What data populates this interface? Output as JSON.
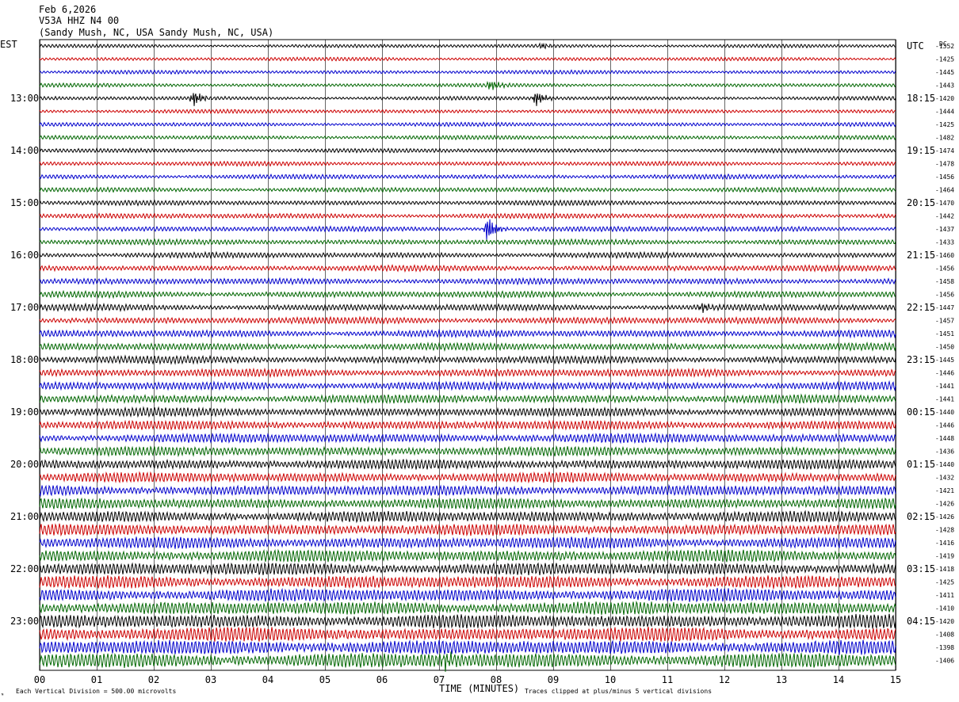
{
  "header": {
    "date": "Feb 6,2026",
    "station": "V53A HHZ N4 00",
    "location": "(Sandy Mush, NC, USA Sandy Mush, NC, USA)"
  },
  "labels": {
    "left_timezone": "EST",
    "right_timezone": "UTC",
    "dc_header": "DC",
    "xlabel": "TIME (MINUTES)",
    "scale_note": "Each Vertical Division =  500.00 microvolts",
    "clip_note": "Traces clipped at plus/minus 5 vertical divisions",
    "corner_mark": "ᴺ"
  },
  "colors": {
    "trace_cycle": [
      "#000000",
      "#cc0000",
      "#0000cc",
      "#006600"
    ],
    "grid": "#000000",
    "background": "#ffffff"
  },
  "chart_data": {
    "type": "line",
    "chart_kind": "helicorder",
    "xlabel": "TIME (MINUTES)",
    "xlim": [
      0,
      15
    ],
    "x_ticks": [
      "00",
      "01",
      "02",
      "03",
      "04",
      "05",
      "06",
      "07",
      "08",
      "09",
      "10",
      "11",
      "12",
      "13",
      "14",
      "15"
    ],
    "minutes_per_line": 15,
    "line_count": 48,
    "left_hour_labels": [
      {
        "line": 4,
        "label": "13:00"
      },
      {
        "line": 8,
        "label": "14:00"
      },
      {
        "line": 12,
        "label": "15:00"
      },
      {
        "line": 16,
        "label": "16:00"
      },
      {
        "line": 20,
        "label": "17:00"
      },
      {
        "line": 24,
        "label": "18:00"
      },
      {
        "line": 28,
        "label": "19:00"
      },
      {
        "line": 32,
        "label": "20:00"
      },
      {
        "line": 36,
        "label": "21:00"
      },
      {
        "line": 40,
        "label": "22:00"
      },
      {
        "line": 44,
        "label": "23:00"
      }
    ],
    "right_hour_labels": [
      {
        "line": 0,
        "label": "UTC"
      },
      {
        "line": 4,
        "label": "18:15"
      },
      {
        "line": 8,
        "label": "19:15"
      },
      {
        "line": 12,
        "label": "20:15"
      },
      {
        "line": 16,
        "label": "21:15"
      },
      {
        "line": 20,
        "label": "22:15"
      },
      {
        "line": 24,
        "label": "23:15"
      },
      {
        "line": 28,
        "label": "00:15"
      },
      {
        "line": 32,
        "label": "01:15"
      },
      {
        "line": 36,
        "label": "02:15"
      },
      {
        "line": 40,
        "label": "03:15"
      },
      {
        "line": 44,
        "label": "04:15"
      }
    ],
    "dc_offsets": [
      "-1352",
      "-1425",
      "-1445",
      "-1443",
      "-1420",
      "-1444",
      "-1425",
      "-1482",
      "-1474",
      "-1478",
      "-1456",
      "-1464",
      "-1470",
      "-1442",
      "-1437",
      "-1433",
      "-1460",
      "-1456",
      "-1458",
      "-1456",
      "-1447",
      "-1457",
      "-1451",
      "-1450",
      "-1445",
      "-1446",
      "-1441",
      "-1441",
      "-1440",
      "-1446",
      "-1448",
      "-1436",
      "-1440",
      "-1432",
      "-1421",
      "-1426",
      "-1426",
      "-1428",
      "-1416",
      "-1419",
      "-1418",
      "-1425",
      "-1411",
      "-1410",
      "-1420",
      "-1408",
      "-1398",
      "-1406"
    ],
    "events": [
      {
        "line": 0,
        "minute": 8.8,
        "amplitude": 0.4
      },
      {
        "line": 3,
        "minute": 7.9,
        "amplitude": 0.8
      },
      {
        "line": 4,
        "minute": 2.7,
        "amplitude": 1.2
      },
      {
        "line": 4,
        "minute": 8.7,
        "amplitude": 1.2
      },
      {
        "line": 14,
        "minute": 7.85,
        "amplitude": 2.0
      },
      {
        "line": 20,
        "minute": 11.6,
        "amplitude": 0.7
      },
      {
        "line": 47,
        "minute": 7.1,
        "amplitude": 1.0
      }
    ],
    "noise_amplitude_start": 0.18,
    "noise_amplitude_end": 0.75,
    "clip_divisions": 5
  }
}
